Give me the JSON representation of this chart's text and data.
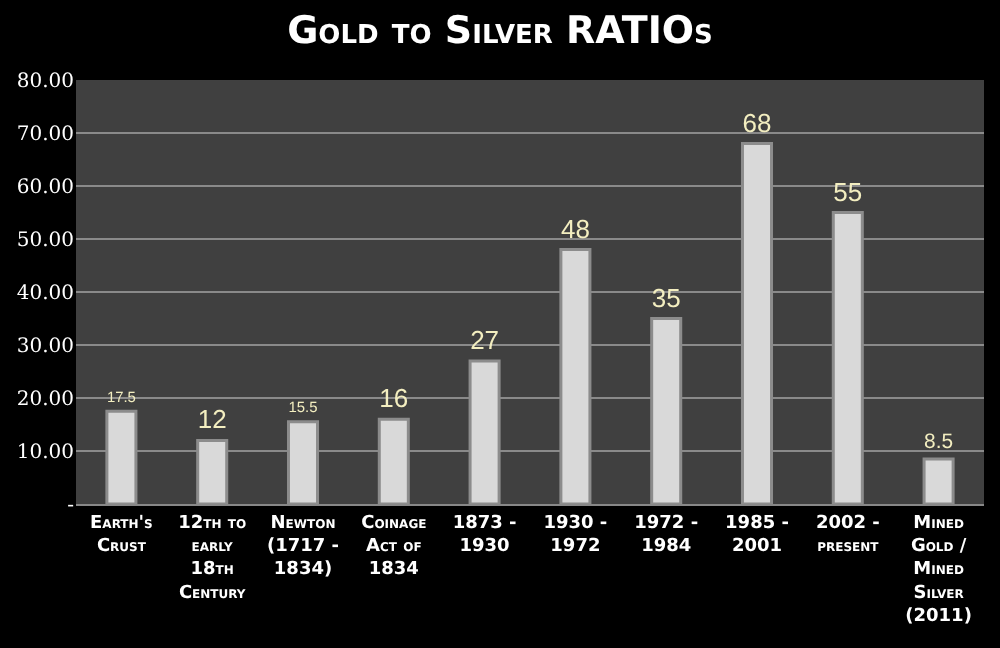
{
  "chart_data": {
    "type": "bar",
    "title": "Gold to Silver RATIOs",
    "categories": [
      "Earth's Crust",
      "12th to early 18th Century",
      "Newton (1717 - 1834)",
      "Coinage Act of 1834",
      "1873 - 1930",
      "1930 - 1972",
      "1972 - 1984",
      "1985 - 2001",
      "2002 - present",
      "Mined Gold / Mined Silver (2011)"
    ],
    "values": [
      17.5,
      12,
      15.5,
      16,
      27,
      48,
      35,
      68,
      55,
      8.5
    ],
    "color": "#d9d9d9",
    "ylim": [
      0,
      80
    ],
    "yticks": [
      {
        "value": 0,
        "label": "-"
      },
      {
        "value": 10,
        "label": "10.00"
      },
      {
        "value": 20,
        "label": "20.00"
      },
      {
        "value": 30,
        "label": "30.00"
      },
      {
        "value": 40,
        "label": "40.00"
      },
      {
        "value": 50,
        "label": "50.00"
      },
      {
        "value": 60,
        "label": "60.00"
      },
      {
        "value": 70,
        "label": "70.00"
      },
      {
        "value": 80,
        "label": "80.00"
      }
    ],
    "grid": "y",
    "data_labels": true
  }
}
